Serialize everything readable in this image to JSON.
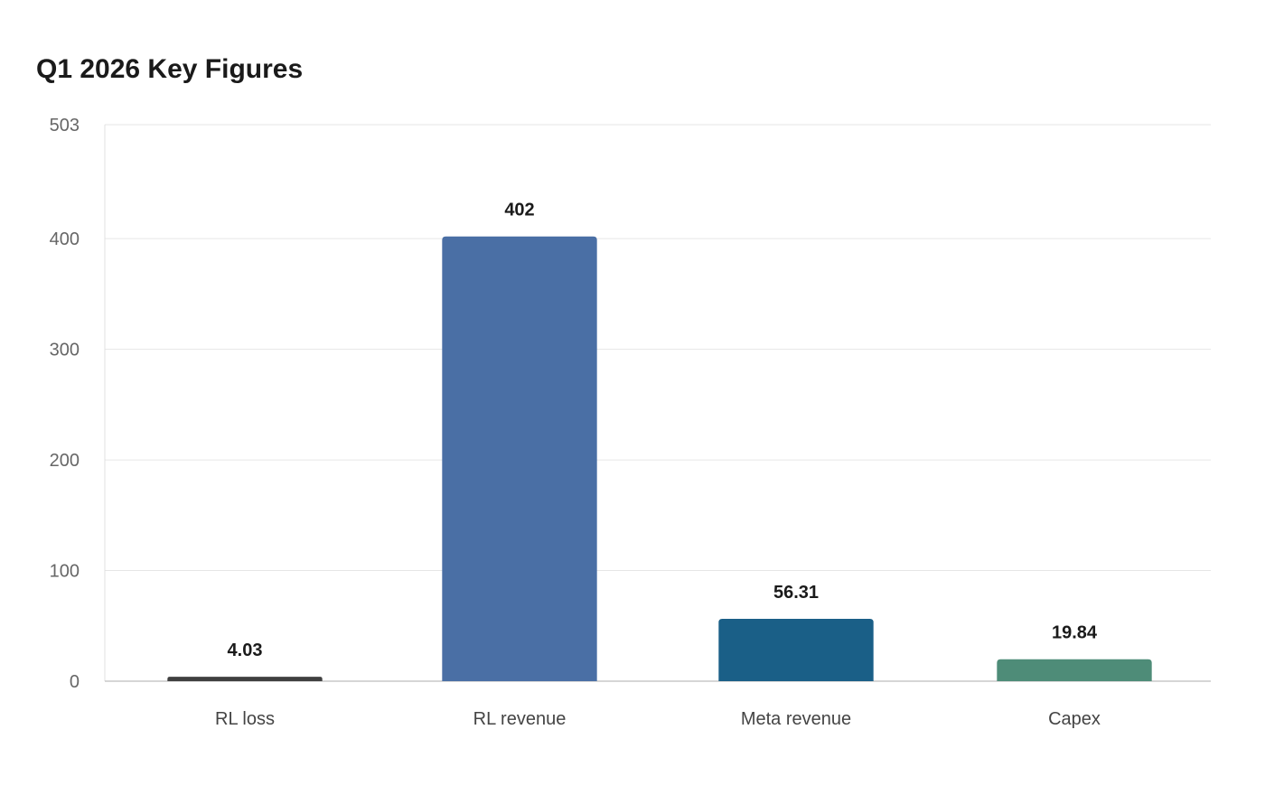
{
  "chart_data": {
    "type": "bar",
    "title": "Q1 2026 Key Figures",
    "xlabel": "",
    "ylabel": "",
    "categories": [
      "RL loss",
      "RL revenue",
      "Meta revenue",
      "Capex"
    ],
    "values": [
      4.03,
      402,
      56.31,
      19.84
    ],
    "value_labels": [
      "4.03",
      "402",
      "56.31",
      "19.84"
    ],
    "colors": [
      "#404040",
      "#4a6fa5",
      "#1a5f87",
      "#4e8c78"
    ],
    "ylim": [
      0,
      503
    ],
    "yticks": [
      0,
      100,
      200,
      300,
      400,
      503
    ],
    "grid": true,
    "legend": "none"
  }
}
